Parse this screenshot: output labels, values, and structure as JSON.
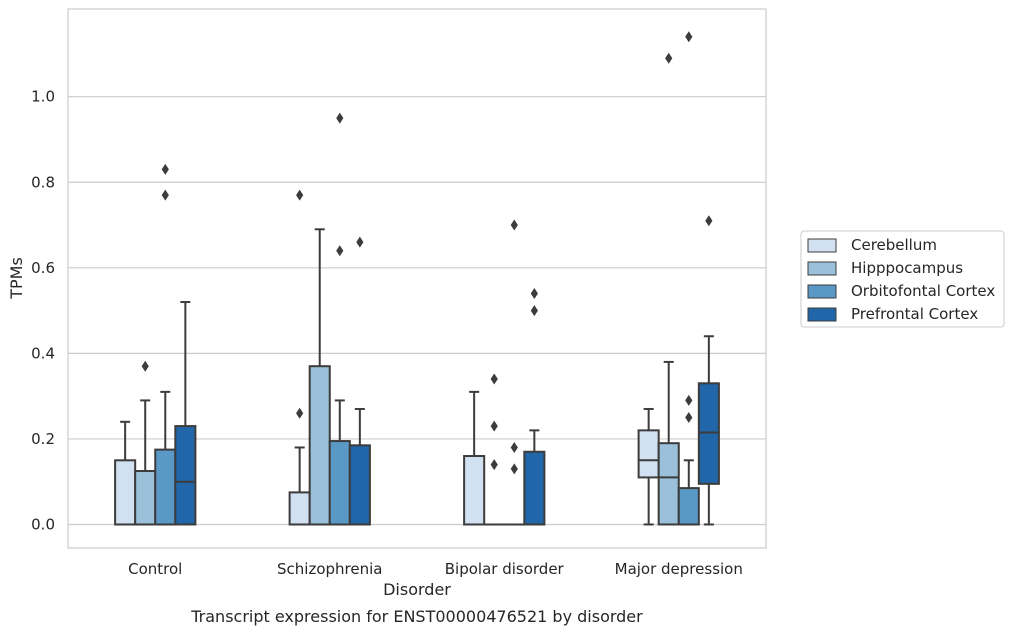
{
  "chart_data": {
    "type": "box",
    "title": "",
    "caption": "Transcript expression for ENST00000476521 by disorder",
    "xlabel": "Disorder",
    "ylabel": "TPMs",
    "ylim": [
      -0.055,
      1.205
    ],
    "yticks": [
      "0.0",
      "0.2",
      "0.4",
      "0.6",
      "0.8",
      "1.0"
    ],
    "ytick_values": [
      0.0,
      0.2,
      0.4,
      0.6,
      0.8,
      1.0
    ],
    "grid": "horizontal",
    "legend_position": "right",
    "categories": [
      "Control",
      "Schizophrenia",
      "Bipolar disorder",
      "Major depression"
    ],
    "series": [
      {
        "name": "Cerebellum",
        "color": "#d2e1f1",
        "boxes": [
          {
            "q1": 0.0,
            "median": 0.0,
            "q3": 0.15,
            "whisker_low": 0.0,
            "whisker_high": 0.24,
            "outliers": []
          },
          {
            "q1": 0.0,
            "median": 0.0,
            "q3": 0.075,
            "whisker_low": 0.0,
            "whisker_high": 0.18,
            "outliers": [
              0.26,
              0.77
            ]
          },
          {
            "q1": 0.0,
            "median": 0.0,
            "q3": 0.16,
            "whisker_low": 0.0,
            "whisker_high": 0.31,
            "outliers": []
          },
          {
            "q1": 0.11,
            "median": 0.15,
            "q3": 0.22,
            "whisker_low": 0.0,
            "whisker_high": 0.27,
            "outliers": []
          }
        ]
      },
      {
        "name": "Hipppocampus",
        "color": "#9ac1d9",
        "boxes": [
          {
            "q1": 0.0,
            "median": 0.0,
            "q3": 0.125,
            "whisker_low": 0.0,
            "whisker_high": 0.29,
            "outliers": [
              0.37
            ]
          },
          {
            "q1": 0.0,
            "median": 0.0,
            "q3": 0.37,
            "whisker_low": 0.0,
            "whisker_high": 0.69,
            "outliers": []
          },
          {
            "q1": 0.0,
            "median": 0.0,
            "q3": 0.0,
            "whisker_low": 0.0,
            "whisker_high": 0.0,
            "outliers": [
              0.14,
              0.23,
              0.34
            ]
          },
          {
            "q1": 0.0,
            "median": 0.11,
            "q3": 0.19,
            "whisker_low": 0.0,
            "whisker_high": 0.38,
            "outliers": [
              1.09
            ]
          }
        ]
      },
      {
        "name": "Orbitofontal Cortex",
        "color": "#5a98c6",
        "boxes": [
          {
            "q1": 0.0,
            "median": 0.0,
            "q3": 0.175,
            "whisker_low": 0.0,
            "whisker_high": 0.31,
            "outliers": [
              0.77,
              0.83
            ]
          },
          {
            "q1": 0.0,
            "median": 0.0,
            "q3": 0.195,
            "whisker_low": 0.0,
            "whisker_high": 0.29,
            "outliers": [
              0.64,
              0.95
            ]
          },
          {
            "q1": 0.0,
            "median": 0.0,
            "q3": 0.0,
            "whisker_low": 0.0,
            "whisker_high": 0.0,
            "outliers": [
              0.13,
              0.18,
              0.7
            ]
          },
          {
            "q1": 0.0,
            "median": 0.0,
            "q3": 0.085,
            "whisker_low": 0.0,
            "whisker_high": 0.15,
            "outliers": [
              0.25,
              0.29,
              1.14
            ]
          }
        ]
      },
      {
        "name": "Prefrontal Cortex",
        "color": "#2166a8",
        "boxes": [
          {
            "q1": 0.0,
            "median": 0.1,
            "q3": 0.23,
            "whisker_low": 0.0,
            "whisker_high": 0.52,
            "outliers": []
          },
          {
            "q1": 0.0,
            "median": 0.0,
            "q3": 0.185,
            "whisker_low": 0.0,
            "whisker_high": 0.27,
            "outliers": [
              0.66
            ]
          },
          {
            "q1": 0.0,
            "median": 0.0,
            "q3": 0.17,
            "whisker_low": 0.0,
            "whisker_high": 0.22,
            "outliers": [
              0.5,
              0.54
            ]
          },
          {
            "q1": 0.095,
            "median": 0.215,
            "q3": 0.33,
            "whisker_low": 0.0,
            "whisker_high": 0.44,
            "outliers": [
              0.71
            ]
          }
        ]
      }
    ]
  }
}
